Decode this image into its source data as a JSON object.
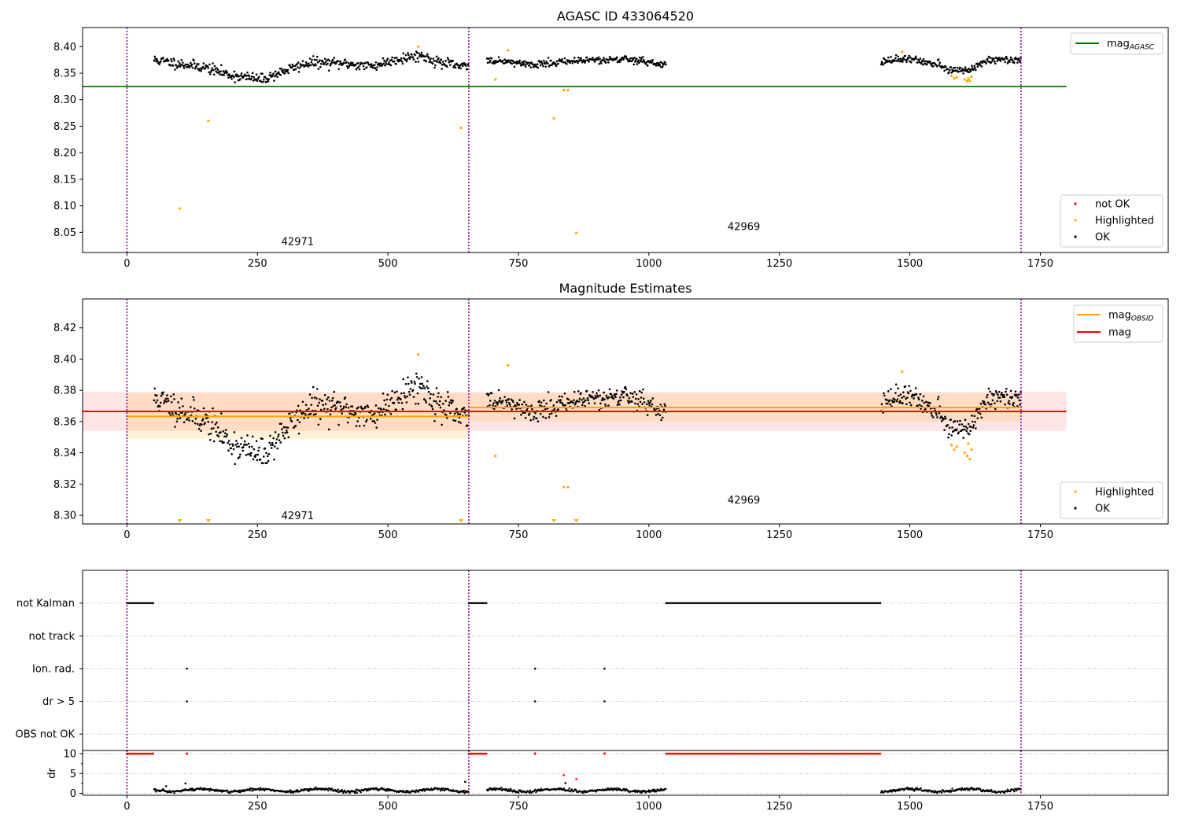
{
  "colors": {
    "ok": "#000000",
    "highlighted": "#ffa500",
    "not_ok": "#ff0000",
    "agasc": "#008000",
    "mag": "#ff0000",
    "obsid_line": "#ffa500",
    "vline": "#800080"
  },
  "chart_data": [
    {
      "id": "top",
      "type": "scatter",
      "title": "AGASC ID 433064520",
      "xlim": [
        -85,
        1995
      ],
      "ylim": [
        8.012,
        8.436
      ],
      "xticks": [
        0,
        250,
        500,
        750,
        1000,
        1250,
        1500,
        1750
      ],
      "yticks": [
        8.05,
        8.1,
        8.15,
        8.2,
        8.25,
        8.3,
        8.35,
        8.4
      ],
      "ytick_labels": [
        "8.05",
        "8.10",
        "8.15",
        "8.20",
        "8.25",
        "8.30",
        "8.35",
        "8.40"
      ],
      "legend_upper": {
        "position": "top-right",
        "entries": [
          {
            "label": "mag",
            "sub": "AGASC",
            "kind": "line",
            "color": "#008000"
          }
        ]
      },
      "legend_lower": {
        "position": "bottom-right",
        "entries": [
          {
            "label": "not OK",
            "kind": "dot",
            "color": "#ff0000"
          },
          {
            "label": "Highlighted",
            "kind": "dot",
            "color": "#ffa500"
          },
          {
            "label": "OK",
            "kind": "dot",
            "color": "#000000"
          }
        ]
      },
      "hlines": [
        {
          "y": 8.325,
          "x": [
            -85,
            1800
          ],
          "color": "#008000",
          "name": "mag_AGASC"
        }
      ],
      "obsid_labels": [
        {
          "text": "42971",
          "x": 327,
          "y": 8.032
        },
        {
          "text": "42969",
          "x": 1182,
          "y": 8.06
        }
      ],
      "vlines": [
        0,
        655,
        1713
      ],
      "segments": [
        {
          "x_start": 52,
          "x_end": 655,
          "mean": 8.366,
          "noise": 0.009,
          "wiggle": [
            [
              52,
              0.009
            ],
            [
              100,
              0.002
            ],
            [
              150,
              -0.005
            ],
            [
              200,
              -0.02
            ],
            [
              260,
              -0.028
            ],
            [
              300,
              -0.012
            ],
            [
              350,
              0.004
            ],
            [
              420,
              0.002
            ],
            [
              470,
              -0.003
            ],
            [
              520,
              0.011
            ],
            [
              560,
              0.018
            ],
            [
              600,
              0.004
            ],
            [
              655,
              -0.006
            ]
          ]
        },
        {
          "x_start": 690,
          "x_end": 1033,
          "mean": 8.369,
          "noise": 0.006,
          "wiggle": [
            [
              690,
              0.004
            ],
            [
              780,
              -0.002
            ],
            [
              850,
              0.004
            ],
            [
              950,
              0.008
            ],
            [
              1033,
              -0.004
            ]
          ]
        },
        {
          "x_start": 1445,
          "x_end": 1713,
          "mean": 8.369,
          "noise": 0.006,
          "wiggle": [
            [
              1445,
              0.003
            ],
            [
              1500,
              0.008
            ],
            [
              1560,
              -0.005
            ],
            [
              1590,
              -0.016
            ],
            [
              1620,
              -0.01
            ],
            [
              1650,
              0.008
            ],
            [
              1713,
              0.004
            ]
          ]
        }
      ],
      "highlighted": [
        [
          101,
          8.095
        ],
        [
          156,
          8.26
        ],
        [
          558,
          8.4
        ],
        [
          640,
          8.247
        ],
        [
          706,
          8.338
        ],
        [
          730,
          8.393
        ],
        [
          818,
          8.265
        ],
        [
          837,
          8.318
        ],
        [
          845,
          8.318
        ],
        [
          861,
          8.049
        ],
        [
          1485,
          8.39
        ],
        [
          1580,
          8.345
        ],
        [
          1585,
          8.34
        ],
        [
          1590,
          8.342
        ],
        [
          1605,
          8.338
        ],
        [
          1610,
          8.335
        ],
        [
          1612,
          8.34
        ],
        [
          1615,
          8.336
        ],
        [
          1618,
          8.343
        ]
      ],
      "not_ok": []
    },
    {
      "id": "mid",
      "type": "scatter",
      "title": "Magnitude Estimates",
      "xlim": [
        -85,
        1995
      ],
      "ylim": [
        8.2945,
        8.4385
      ],
      "xticks": [
        0,
        250,
        500,
        750,
        1000,
        1250,
        1500,
        1750
      ],
      "yticks": [
        8.3,
        8.32,
        8.34,
        8.36,
        8.38,
        8.4,
        8.42
      ],
      "ytick_labels": [
        "8.30",
        "8.32",
        "8.34",
        "8.36",
        "8.38",
        "8.40",
        "8.42"
      ],
      "legend_upper": {
        "position": "top-right",
        "entries": [
          {
            "label": "mag",
            "sub": "OBSID",
            "kind": "line",
            "color": "#ffa500"
          },
          {
            "label": "mag",
            "sub": "",
            "kind": "line",
            "color": "#ff0000"
          }
        ]
      },
      "legend_lower": {
        "position": "bottom-right",
        "entries": [
          {
            "label": "Highlighted",
            "kind": "dot",
            "color": "#ffa500"
          },
          {
            "label": "OK",
            "kind": "dot",
            "color": "#000000"
          }
        ]
      },
      "mag_band": {
        "x": [
          -85,
          1800
        ],
        "y": [
          8.354,
          8.379
        ],
        "color": "#ff0000",
        "opacity": 0.1
      },
      "mag_line": {
        "x": [
          -85,
          1800
        ],
        "y": 8.3665,
        "color": "#ff0000"
      },
      "obsid_stats": [
        {
          "x": [
            0,
            655
          ],
          "mean": 8.3633,
          "band": [
            8.349,
            8.378
          ]
        },
        {
          "x": [
            655,
            1713
          ],
          "mean": 8.369,
          "band": [
            8.36,
            8.378
          ]
        }
      ],
      "obsid_labels": [
        {
          "text": "42971",
          "x": 327,
          "y": 8.2995
        },
        {
          "text": "42969",
          "x": 1182,
          "y": 8.3095
        }
      ],
      "vlines": [
        0,
        655,
        1713
      ],
      "segments": [
        {
          "x_start": 52,
          "x_end": 655,
          "mean": 8.366,
          "noise": 0.009,
          "wiggle": [
            [
              52,
              0.009
            ],
            [
              100,
              0.002
            ],
            [
              150,
              -0.005
            ],
            [
              200,
              -0.02
            ],
            [
              260,
              -0.028
            ],
            [
              300,
              -0.012
            ],
            [
              350,
              0.004
            ],
            [
              420,
              0.002
            ],
            [
              470,
              -0.003
            ],
            [
              520,
              0.011
            ],
            [
              560,
              0.018
            ],
            [
              600,
              0.004
            ],
            [
              655,
              -0.006
            ]
          ]
        },
        {
          "x_start": 690,
          "x_end": 1033,
          "mean": 8.369,
          "noise": 0.006,
          "wiggle": [
            [
              690,
              0.004
            ],
            [
              780,
              -0.002
            ],
            [
              850,
              0.004
            ],
            [
              950,
              0.008
            ],
            [
              1033,
              -0.004
            ]
          ]
        },
        {
          "x_start": 1445,
          "x_end": 1713,
          "mean": 8.369,
          "noise": 0.006,
          "wiggle": [
            [
              1445,
              0.003
            ],
            [
              1500,
              0.008
            ],
            [
              1560,
              -0.005
            ],
            [
              1590,
              -0.016
            ],
            [
              1620,
              -0.01
            ],
            [
              1650,
              0.008
            ],
            [
              1713,
              0.004
            ]
          ]
        }
      ],
      "highlighted": [
        [
          558,
          8.403
        ],
        [
          706,
          8.338
        ],
        [
          730,
          8.396
        ],
        [
          837,
          8.318
        ],
        [
          845,
          8.318
        ],
        [
          1485,
          8.392
        ],
        [
          1580,
          8.345
        ],
        [
          1585,
          8.342
        ],
        [
          1590,
          8.344
        ],
        [
          1605,
          8.34
        ],
        [
          1610,
          8.338
        ],
        [
          1612,
          8.346
        ],
        [
          1615,
          8.336
        ],
        [
          1618,
          8.342
        ]
      ],
      "clipped_low": [
        101,
        156,
        640,
        818,
        861
      ]
    },
    {
      "id": "flags",
      "type": "scatter",
      "xlim": [
        -85,
        1995
      ],
      "ylim": [
        -0.5,
        5.0
      ],
      "categories": [
        "not Kalman",
        "not track",
        "Ion. rad.",
        "dr > 5",
        "OBS not OK"
      ],
      "category_y": [
        4,
        3,
        2,
        1,
        0
      ],
      "vlines": [
        0,
        655,
        1713
      ],
      "flags": {
        "not Kalman": {
          "ranges": [
            [
              0,
              52
            ],
            [
              655,
              690
            ],
            [
              1033,
              1445
            ]
          ],
          "points": []
        },
        "not track": {
          "ranges": [],
          "points": []
        },
        "Ion. rad.": {
          "ranges": [],
          "points": [
            115,
            782,
            915
          ]
        },
        "dr > 5": {
          "ranges": [],
          "points": [
            115,
            782,
            915
          ]
        },
        "OBS not OK": {
          "ranges": [],
          "points": []
        }
      }
    },
    {
      "id": "dr",
      "type": "scatter",
      "ylabel": "dr",
      "xlim": [
        -85,
        1995
      ],
      "ylim": [
        -0.5,
        10.8
      ],
      "xticks": [
        0,
        250,
        500,
        750,
        1000,
        1250,
        1500,
        1750
      ],
      "yticks": [
        0,
        5,
        10
      ],
      "ytick_labels": [
        "0",
        "5",
        "10"
      ],
      "vlines": [
        0,
        655,
        1713
      ],
      "ok_segments": [
        [
          52,
          655
        ],
        [
          690,
          1033
        ],
        [
          1445,
          1713
        ]
      ],
      "red_at_10": {
        "ranges": [
          [
            0,
            52
          ],
          [
            655,
            690
          ],
          [
            1033,
            1445
          ]
        ],
        "points": [
          115,
          782,
          915
        ]
      },
      "extra_points": [
        [
          75,
          1.8,
          "#000000"
        ],
        [
          112,
          2.5,
          "#000000"
        ],
        [
          648,
          2.9,
          "#000000"
        ],
        [
          840,
          2.6,
          "#000000"
        ],
        [
          837,
          4.6,
          "#ff0000"
        ],
        [
          861,
          3.6,
          "#ff0000"
        ]
      ]
    }
  ]
}
